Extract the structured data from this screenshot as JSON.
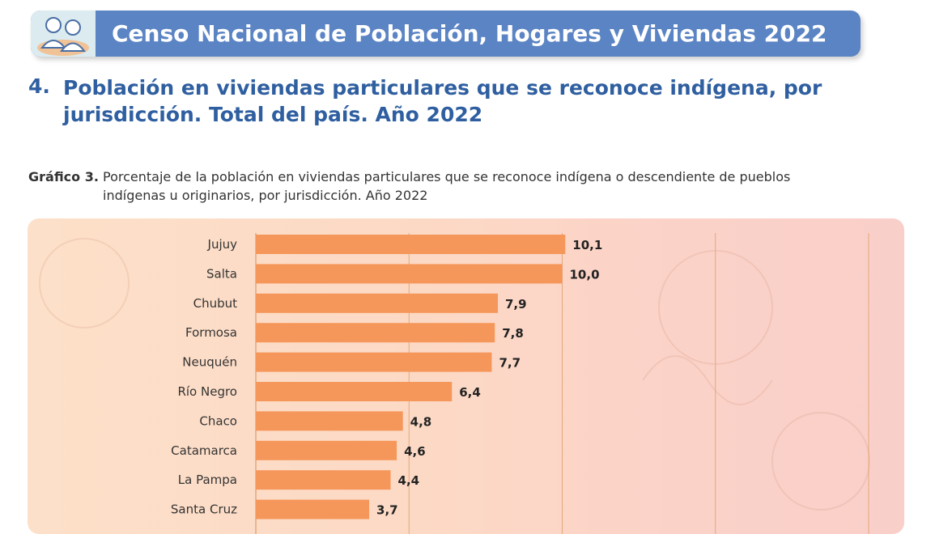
{
  "header": {
    "title": "Censo Nacional de Población, Hogares y Viviendas 2022"
  },
  "section": {
    "number": "4.",
    "title": "Población en viviendas particulares que se reconoce indígena, por jurisdicción. Total del país. Año 2022"
  },
  "caption": {
    "label": "Gráfico 3.",
    "text_line1": "Porcentaje de la población en viviendas particulares que se reconoce indígena o descendiente de pueblos",
    "text_line2": "indígenas u originarios, por jurisdicción. Año 2022"
  },
  "colors": {
    "banner": "#5b84c4",
    "title_text": "#2f5fa0",
    "bar": "#f5975a",
    "gridline": "#e3a97a"
  },
  "chart_data": {
    "type": "bar",
    "orientation": "horizontal",
    "title": "",
    "xlabel": "",
    "ylabel": "",
    "xlim": [
      0,
      20
    ],
    "grid": true,
    "categories": [
      "Jujuy",
      "Salta",
      "Chubut",
      "Formosa",
      "Neuquén",
      "Río Negro",
      "Chaco",
      "Catamarca",
      "La Pampa",
      "Santa Cruz"
    ],
    "values": [
      10.1,
      10.0,
      7.9,
      7.8,
      7.7,
      6.4,
      4.8,
      4.6,
      4.4,
      3.7
    ],
    "value_labels": [
      "10,1",
      "10,0",
      "7,9",
      "7,8",
      "7,7",
      "6,4",
      "4,8",
      "4,6",
      "4,4",
      "3,7"
    ]
  }
}
